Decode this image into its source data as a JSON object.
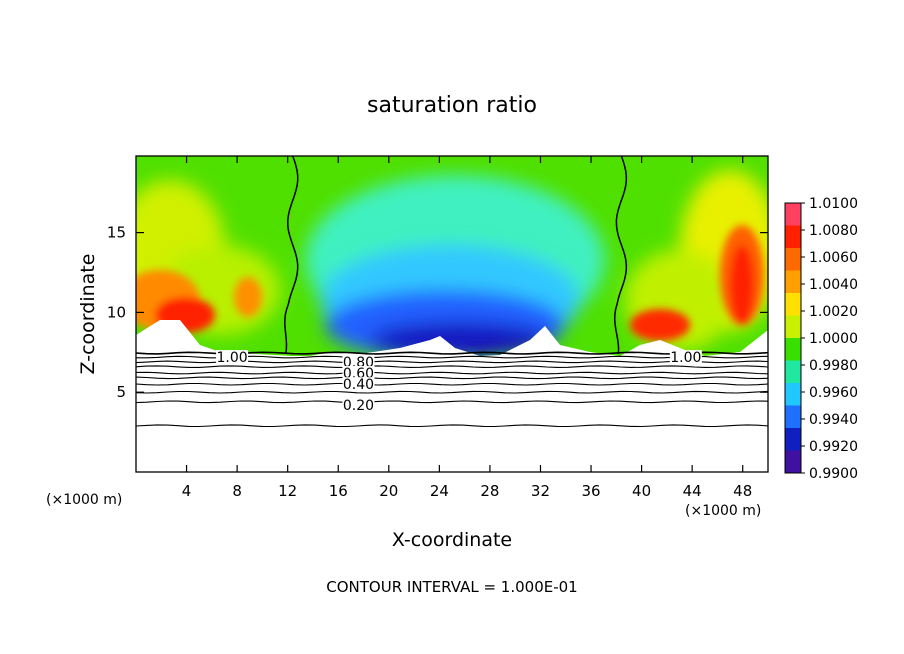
{
  "chart_data": {
    "type": "heatmap",
    "title": "saturation ratio",
    "xlabel": "X-coordinate",
    "ylabel": "Z-coordinate",
    "x_unit_left": "(×1000 m)",
    "x_unit_right": "(×1000 m)",
    "footer": "CONTOUR INTERVAL = 1.000E-01",
    "xlim": [
      0,
      50
    ],
    "ylim": [
      0,
      19.8
    ],
    "x_ticks": [
      4,
      8,
      12,
      16,
      20,
      24,
      28,
      32,
      36,
      40,
      44,
      48
    ],
    "y_ticks": [
      5,
      10,
      15
    ],
    "colorbar": {
      "labels": [
        "1.0100",
        "1.0080",
        "1.0060",
        "1.0040",
        "1.0020",
        "1.0000",
        "0.9980",
        "0.9960",
        "0.9940",
        "0.9920",
        "0.9900"
      ],
      "colors": [
        "#ff4060",
        "#ff2000",
        "#ff6a00",
        "#ffa000",
        "#ffe000",
        "#c8f000",
        "#38e000",
        "#20e8a0",
        "#20c8ff",
        "#2070ff",
        "#1020c0",
        "#4010a0"
      ]
    },
    "contour_labels": [
      {
        "text": "1.00",
        "x": 7.6,
        "y": 7.2
      },
      {
        "text": "0.80",
        "x": 17.6,
        "y": 6.9
      },
      {
        "text": "0.60",
        "x": 17.6,
        "y": 6.2
      },
      {
        "text": "0.40",
        "x": 17.6,
        "y": 5.5
      },
      {
        "text": "0.20",
        "x": 17.6,
        "y": 4.2
      },
      {
        "text": "1.00",
        "x": 43.5,
        "y": 7.2
      }
    ],
    "contour_levels_y": [
      7.45,
      7.2,
      6.9,
      6.6,
      6.2,
      5.9,
      5.5,
      5.0,
      4.4,
      2.9
    ],
    "boundary_x_left": 12.4,
    "boundary_x_right": 38.4,
    "cloud_base_y": 7.4
  }
}
